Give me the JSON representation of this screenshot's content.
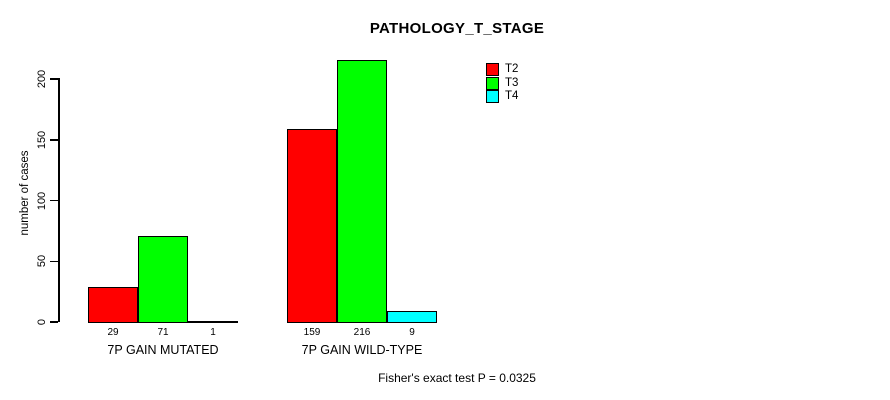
{
  "chart_data": {
    "type": "bar",
    "title": "PATHOLOGY_T_STAGE",
    "categories": [
      "7P GAIN MUTATED",
      "7P GAIN WILD-TYPE"
    ],
    "series": [
      {
        "name": "T2",
        "color": "#ff0000",
        "values": [
          29,
          159
        ]
      },
      {
        "name": "T3",
        "color": "#00ff00",
        "values": [
          71,
          216
        ]
      },
      {
        "name": "T4",
        "color": "#00ffff",
        "values": [
          1,
          9
        ]
      }
    ],
    "xlabel": "",
    "ylabel": "number of cases",
    "ylim": [
      0,
      200
    ],
    "yticks": [
      0,
      50,
      100,
      150,
      200
    ],
    "grid": false,
    "legend_position": "top-right",
    "bar_value_labels_shown": true,
    "annotation": "Fisher's exact test P = 0.0325",
    "axis_color": "#000000",
    "background_color": "#ffffff"
  }
}
